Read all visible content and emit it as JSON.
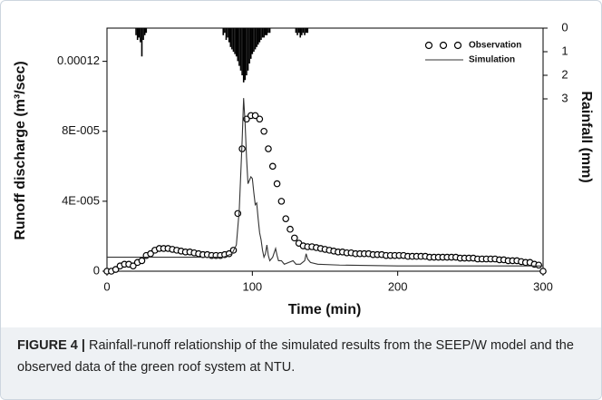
{
  "chart_data": {
    "type": "combo",
    "xlabel": "Time (min)",
    "ylabel": "Runoff discharge (m³/sec)",
    "y2label": "Rainfall (mm)",
    "xlim": [
      0,
      300
    ],
    "xticks": [
      0,
      100,
      200,
      300
    ],
    "ylim": [
      0,
      0.000139
    ],
    "yticks": [
      0,
      {
        "value": 4e-05,
        "label": "4E-005"
      },
      {
        "value": 8e-05,
        "label": "8E-005"
      },
      0.00012
    ],
    "y2lim": [
      0,
      10.3
    ],
    "y2ticks": [
      0,
      1,
      2,
      3
    ],
    "y2_inverted": true,
    "legend": "upper right",
    "series": [
      {
        "name": "Observation",
        "type": "scatter",
        "color": "#000000",
        "x": [
          0,
          3,
          6,
          9,
          12,
          15,
          18,
          21,
          24,
          27,
          30,
          33,
          36,
          39,
          42,
          45,
          48,
          51,
          54,
          57,
          60,
          63,
          66,
          69,
          72,
          75,
          78,
          81,
          84,
          87,
          90,
          93,
          96,
          99,
          102,
          105,
          108,
          111,
          114,
          117,
          120,
          123,
          126,
          129,
          132,
          135,
          138,
          141,
          144,
          147,
          150,
          153,
          156,
          159,
          162,
          165,
          168,
          171,
          174,
          177,
          180,
          183,
          186,
          189,
          192,
          195,
          198,
          201,
          204,
          207,
          210,
          213,
          216,
          219,
          222,
          225,
          228,
          231,
          234,
          237,
          240,
          243,
          246,
          249,
          252,
          255,
          258,
          261,
          264,
          267,
          270,
          273,
          276,
          279,
          282,
          285,
          288,
          291,
          294,
          297,
          300
        ],
        "values": [
          0,
          0,
          1e-06,
          3e-06,
          4e-06,
          4e-06,
          3e-06,
          5e-06,
          6e-06,
          9e-06,
          1e-05,
          1.2e-05,
          1.3e-05,
          1.3e-05,
          1.3e-05,
          1.25e-05,
          1.2e-05,
          1.15e-05,
          1.1e-05,
          1.1e-05,
          1.05e-05,
          1e-05,
          9.5e-06,
          9.5e-06,
          9e-06,
          9e-06,
          9e-06,
          9.5e-06,
          1e-05,
          1.2e-05,
          3.3e-05,
          7e-05,
          8.7e-05,
          8.9e-05,
          8.9e-05,
          8.7e-05,
          8e-05,
          7e-05,
          6e-05,
          5e-05,
          4e-05,
          3e-05,
          2.4e-05,
          1.9e-05,
          1.6e-05,
          1.45e-05,
          1.4e-05,
          1.4e-05,
          1.35e-05,
          1.3e-05,
          1.25e-05,
          1.2e-05,
          1.15e-05,
          1.1e-05,
          1.1e-05,
          1.05e-05,
          1.05e-05,
          1e-05,
          1e-05,
          1e-05,
          1e-05,
          9.5e-06,
          9.5e-06,
          9.5e-06,
          9e-06,
          9e-06,
          9e-06,
          9e-06,
          9e-06,
          8.5e-06,
          8.5e-06,
          8.5e-06,
          8.5e-06,
          8.5e-06,
          8e-06,
          8e-06,
          8e-06,
          8e-06,
          8e-06,
          8e-06,
          8e-06,
          7.5e-06,
          7.5e-06,
          7.5e-06,
          7.5e-06,
          7e-06,
          7e-06,
          7e-06,
          7e-06,
          7e-06,
          6.5e-06,
          6.5e-06,
          6e-06,
          6e-06,
          6e-06,
          5.5e-06,
          5e-06,
          5e-06,
          4e-06,
          3.5e-06,
          0
        ]
      },
      {
        "name": "Simulation",
        "type": "line",
        "color": "#333333",
        "x": [
          0,
          20,
          80,
          86,
          89,
          91,
          93,
          94,
          95,
          96,
          97,
          98,
          99,
          100,
          101,
          102,
          103,
          104,
          105,
          106,
          107,
          108,
          109,
          110,
          111,
          112,
          114,
          116,
          117,
          118,
          120,
          122,
          125,
          128,
          130,
          133,
          136,
          137,
          138,
          140,
          145,
          160,
          200,
          250,
          300
        ],
        "values": [
          8e-06,
          8e-06,
          8e-06,
          1e-05,
          1.5e-05,
          3.5e-05,
          7.5e-05,
          9.9e-05,
          8.5e-05,
          6.5e-05,
          5e-05,
          5.2e-05,
          5.4e-05,
          5.3e-05,
          4.5e-05,
          3.8e-05,
          3.9e-05,
          3e-05,
          2.2e-05,
          1.8e-05,
          1.2e-05,
          8e-06,
          1e-05,
          1.5e-05,
          9e-06,
          6e-06,
          8e-06,
          1.3e-05,
          9e-06,
          6e-06,
          6e-06,
          4e-06,
          5e-06,
          6e-06,
          4e-06,
          4e-06,
          6e-06,
          1e-05,
          7e-06,
          5e-06,
          4e-06,
          3.5e-06,
          3e-06,
          3e-06,
          3e-06
        ]
      },
      {
        "type": "bar",
        "axis": "y2",
        "color": "#000000",
        "x": [
          20,
          21,
          22,
          23,
          24,
          25,
          26,
          27,
          80,
          81,
          82,
          83,
          84,
          85,
          86,
          87,
          88,
          89,
          90,
          91,
          92,
          93,
          94,
          95,
          96,
          97,
          98,
          99,
          100,
          101,
          102,
          103,
          104,
          105,
          106,
          107,
          108,
          109,
          110,
          111,
          112,
          130,
          131,
          132,
          133,
          134,
          135,
          136,
          137,
          138
        ],
        "values": [
          0.3,
          0.5,
          0.4,
          0.6,
          1.2,
          0.5,
          0.3,
          0.2,
          0.3,
          0.2,
          0.5,
          0.4,
          0.6,
          0.8,
          0.9,
          1.0,
          1.1,
          1.2,
          1.4,
          1.6,
          1.8,
          2.0,
          2.3,
          2.2,
          2.0,
          1.8,
          1.5,
          1.3,
          1.1,
          1.0,
          0.9,
          0.8,
          0.7,
          0.6,
          0.5,
          0.4,
          0.4,
          0.3,
          0.3,
          0.2,
          0.2,
          0.2,
          0.3,
          0.2,
          0.4,
          0.3,
          0.2,
          0.3,
          0.2,
          0.2
        ]
      }
    ]
  },
  "caption": {
    "label": "FIGURE 4 |",
    "text": "Rainfall-runoff relationship of the simulated results from the SEEP/W model and the observed data of the green roof system at NTU."
  }
}
